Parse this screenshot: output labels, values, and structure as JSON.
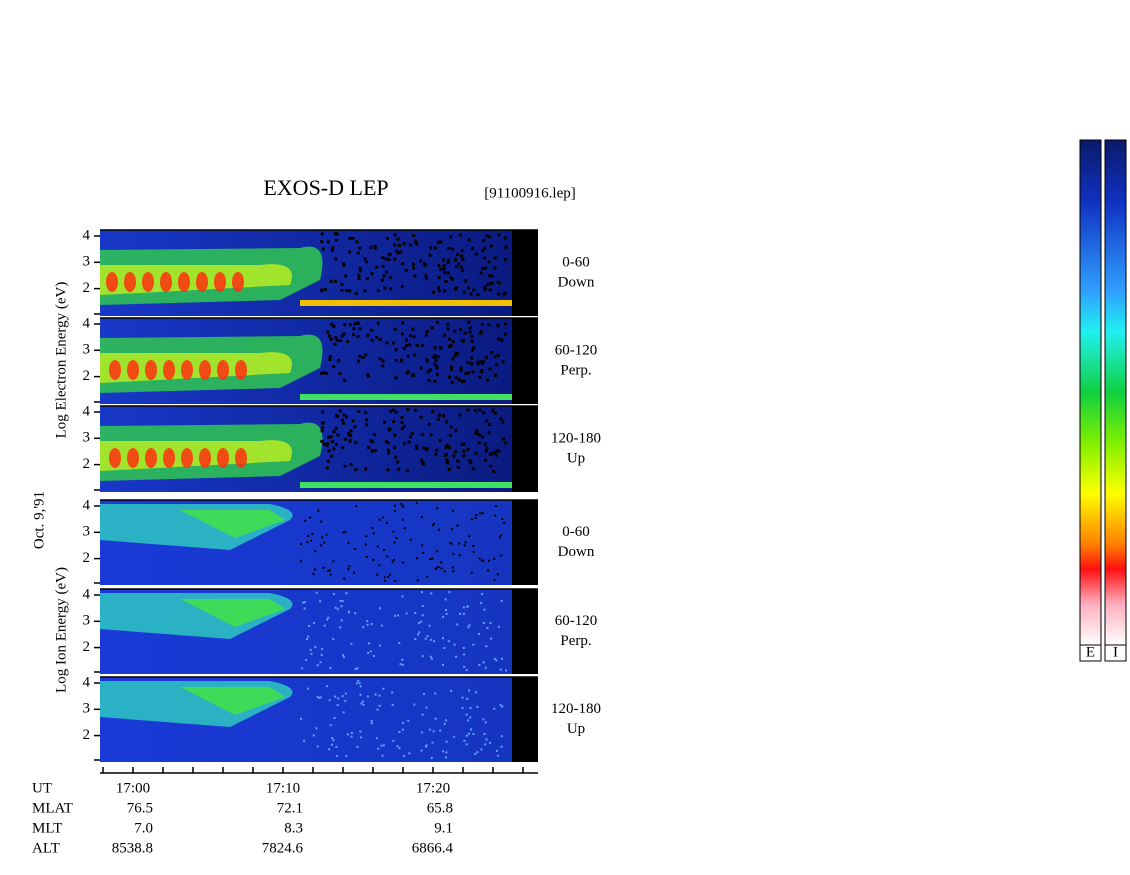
{
  "header": {
    "title": "EXOS-D LEP",
    "file": "[91100916.lep]"
  },
  "electron": {
    "axis_label": "Log Electron Energy (eV)",
    "panels": [
      {
        "range": "0-60",
        "direction": "Down"
      },
      {
        "range": "60-120",
        "direction": "Perp."
      },
      {
        "range": "120-180",
        "direction": "Up"
      }
    ]
  },
  "date": "Oct. 9,'91",
  "ion": {
    "axis_label": "Log Ion Energy (eV)",
    "panels": [
      {
        "range": "0-60",
        "direction": "Down"
      },
      {
        "range": "60-120",
        "direction": "Perp."
      },
      {
        "range": "120-180",
        "direction": "Up"
      }
    ]
  },
  "yticks": [
    2,
    3,
    4
  ],
  "time_axis": {
    "rows": [
      {
        "label": "UT",
        "values": [
          "17:00",
          "17:10",
          "17:20"
        ]
      },
      {
        "label": "MLAT",
        "values": [
          "76.5",
          "72.1",
          "65.8"
        ]
      },
      {
        "label": "MLT",
        "values": [
          "7.0",
          "8.3",
          "9.1"
        ]
      },
      {
        "label": "ALT",
        "values": [
          "8538.8",
          "7824.6",
          "6866.4"
        ]
      }
    ]
  },
  "colorbars": [
    "E",
    "I"
  ]
}
